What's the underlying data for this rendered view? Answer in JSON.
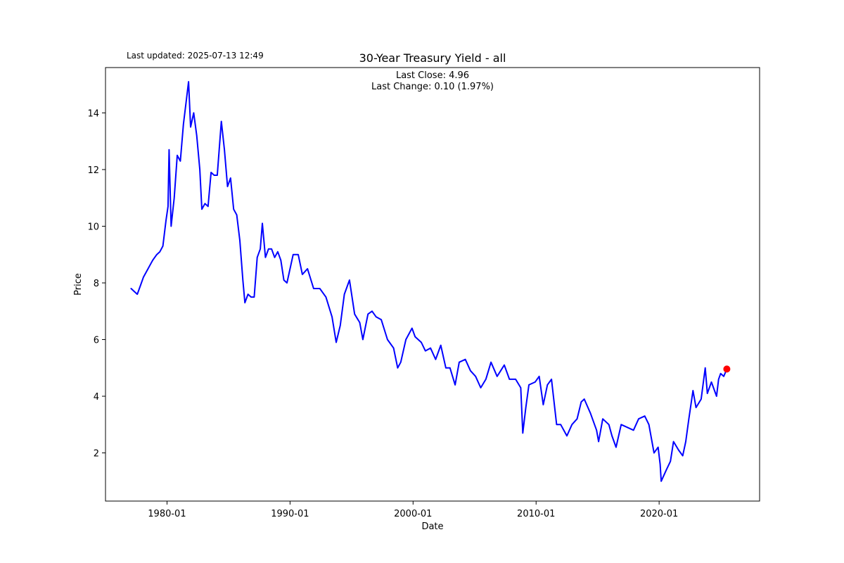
{
  "header": {
    "updated": "Last updated: 2025-07-13 12:49"
  },
  "annotations": {
    "last_close": "Last Close: 4.96",
    "last_change": "Last Change: 0.10 (1.97%)"
  },
  "colors": {
    "line": "#0000ff",
    "last_point": "#ff0000",
    "axes": "#000000",
    "background": "#ffffff"
  },
  "chart_data": {
    "type": "line",
    "title": "30-Year Treasury Yield - all",
    "xlabel": "Date",
    "ylabel": "Price",
    "x_ticks": [
      "1980-01",
      "1990-01",
      "2000-01",
      "2010-01",
      "2020-01"
    ],
    "y_ticks": [
      2,
      4,
      6,
      8,
      10,
      12,
      14
    ],
    "xlim": [
      "1975-01",
      "2028-03"
    ],
    "ylim": [
      0.3,
      15.6
    ],
    "grid": false,
    "series": [
      {
        "x": [
          "1977-02",
          "1977-05",
          "1977-08",
          "1977-11",
          "1978-02",
          "1978-05",
          "1978-08",
          "1978-11",
          "1979-03",
          "1979-06",
          "1979-09",
          "1979-12",
          "1980-02",
          "1980-03",
          "1980-05",
          "1980-08",
          "1980-11",
          "1981-02",
          "1981-05",
          "1981-08",
          "1981-10",
          "1981-12",
          "1982-03",
          "1982-06",
          "1982-09",
          "1982-11",
          "1983-02",
          "1983-05",
          "1983-08",
          "1983-11",
          "1984-02",
          "1984-06",
          "1984-09",
          "1984-12",
          "1985-03",
          "1985-06",
          "1985-09",
          "1985-12",
          "1986-03",
          "1986-05",
          "1986-08",
          "1986-11",
          "1987-02",
          "1987-05",
          "1987-08",
          "1987-10",
          "1988-01",
          "1988-04",
          "1988-07",
          "1988-10",
          "1989-01",
          "1989-04",
          "1989-07",
          "1989-10",
          "1990-01",
          "1990-04",
          "1990-09",
          "1991-01",
          "1991-06",
          "1991-12",
          "1992-06",
          "1992-12",
          "1993-06",
          "1993-10",
          "1994-02",
          "1994-06",
          "1994-11",
          "1995-04",
          "1995-09",
          "1995-12",
          "1996-05",
          "1996-09",
          "1997-01",
          "1997-06",
          "1997-12",
          "1998-06",
          "1998-10",
          "1999-01",
          "1999-06",
          "1999-12",
          "2000-03",
          "2000-09",
          "2001-01",
          "2001-06",
          "2001-11",
          "2002-04",
          "2002-09",
          "2003-01",
          "2003-06",
          "2003-10",
          "2004-04",
          "2004-09",
          "2005-02",
          "2005-07",
          "2005-12",
          "2006-05",
          "2006-11",
          "2007-06",
          "2007-11",
          "2008-05",
          "2008-10",
          "2008-12",
          "2009-03",
          "2009-06",
          "2009-12",
          "2010-04",
          "2010-08",
          "2010-12",
          "2011-04",
          "2011-09",
          "2012-01",
          "2012-07",
          "2012-12",
          "2013-05",
          "2013-09",
          "2013-12",
          "2014-06",
          "2014-12",
          "2015-02",
          "2015-06",
          "2015-12",
          "2016-03",
          "2016-07",
          "2016-12",
          "2017-06",
          "2017-12",
          "2018-05",
          "2018-11",
          "2019-03",
          "2019-08",
          "2019-12",
          "2020-02",
          "2020-03",
          "2020-08",
          "2020-12",
          "2021-03",
          "2021-08",
          "2021-12",
          "2022-03",
          "2022-06",
          "2022-10",
          "2023-01",
          "2023-06",
          "2023-10",
          "2023-12",
          "2024-04",
          "2024-09",
          "2024-11",
          "2025-01",
          "2025-04",
          "2025-07"
        ],
        "values": [
          7.8,
          7.7,
          7.6,
          7.9,
          8.2,
          8.4,
          8.6,
          8.8,
          9.0,
          9.1,
          9.3,
          10.2,
          10.7,
          12.7,
          10.0,
          11.0,
          12.5,
          12.3,
          13.6,
          14.5,
          15.1,
          13.5,
          14.0,
          13.2,
          12.0,
          10.6,
          10.8,
          10.7,
          11.9,
          11.8,
          11.8,
          13.7,
          12.7,
          11.4,
          11.7,
          10.6,
          10.4,
          9.5,
          8.1,
          7.3,
          7.6,
          7.5,
          7.5,
          8.9,
          9.2,
          10.1,
          8.9,
          9.2,
          9.2,
          8.9,
          9.1,
          8.8,
          8.1,
          8.0,
          8.5,
          9.0,
          9.0,
          8.3,
          8.5,
          7.8,
          7.8,
          7.5,
          6.8,
          5.9,
          6.5,
          7.6,
          8.1,
          6.9,
          6.6,
          6.0,
          6.9,
          7.0,
          6.8,
          6.7,
          6.0,
          5.7,
          5.0,
          5.2,
          6.0,
          6.4,
          6.1,
          5.9,
          5.6,
          5.7,
          5.3,
          5.8,
          5.0,
          5.0,
          4.4,
          5.2,
          5.3,
          4.9,
          4.7,
          4.3,
          4.6,
          5.2,
          4.7,
          5.1,
          4.6,
          4.6,
          4.3,
          2.7,
          3.6,
          4.4,
          4.5,
          4.7,
          3.7,
          4.4,
          4.6,
          3.0,
          3.0,
          2.6,
          3.0,
          3.2,
          3.8,
          3.9,
          3.4,
          2.8,
          2.4,
          3.2,
          3.0,
          2.6,
          2.2,
          3.0,
          2.9,
          2.8,
          3.2,
          3.3,
          3.0,
          2.0,
          2.2,
          1.6,
          1.0,
          1.4,
          1.7,
          2.4,
          2.1,
          1.9,
          2.4,
          3.2,
          4.2,
          3.6,
          3.9,
          5.0,
          4.1,
          4.5,
          4.0,
          4.6,
          4.8,
          4.7,
          4.96
        ]
      }
    ],
    "last_point": {
      "x": "2025-07",
      "y": 4.96
    }
  }
}
